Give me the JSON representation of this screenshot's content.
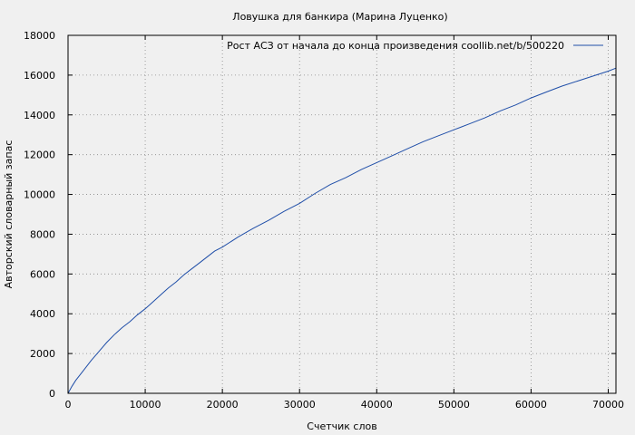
{
  "chart_data": {
    "type": "line",
    "title": "Ловушка для банкира (Марина Луценко)",
    "xlabel": "Счетчик слов",
    "ylabel": "Авторский словарный запас",
    "xlim": [
      0,
      71000
    ],
    "ylim": [
      0,
      18000
    ],
    "xticks": [
      0,
      10000,
      20000,
      30000,
      40000,
      50000,
      60000,
      70000
    ],
    "yticks": [
      0,
      2000,
      4000,
      6000,
      8000,
      10000,
      12000,
      14000,
      16000,
      18000
    ],
    "grid": true,
    "legend_position": "top-right",
    "series": [
      {
        "name": "Рост АСЗ от начала до конца произведения  coollib.net/b/500220",
        "color": "#1f4ea8",
        "x": [
          0,
          500,
          1000,
          2000,
          3000,
          4000,
          5000,
          6000,
          7000,
          8000,
          9000,
          10000,
          11000,
          12000,
          13000,
          14000,
          15000,
          16000,
          17000,
          18000,
          19000,
          20000,
          22000,
          24000,
          26000,
          28000,
          30000,
          32000,
          34000,
          36000,
          38000,
          40000,
          42000,
          44000,
          46000,
          48000,
          50000,
          52000,
          54000,
          56000,
          58000,
          60000,
          62000,
          64000,
          66000,
          68000,
          70000,
          71000
        ],
        "y": [
          0,
          350,
          650,
          1150,
          1650,
          2100,
          2550,
          2950,
          3300,
          3600,
          3950,
          4250,
          4600,
          4950,
          5300,
          5600,
          5950,
          6250,
          6550,
          6850,
          7150,
          7350,
          7850,
          8300,
          8700,
          9150,
          9550,
          10050,
          10500,
          10850,
          11250,
          11600,
          11950,
          12300,
          12650,
          12950,
          13250,
          13550,
          13850,
          14200,
          14500,
          14850,
          15150,
          15450,
          15700,
          15950,
          16200,
          16350
        ]
      }
    ]
  }
}
